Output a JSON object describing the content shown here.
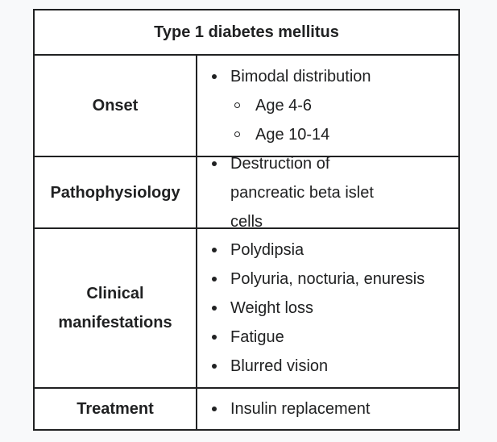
{
  "table": {
    "title": "Type 1 diabetes mellitus",
    "rows": [
      {
        "label": "Onset",
        "items": [
          {
            "text": "Bimodal distribution",
            "subitems": [
              "Age 4-6",
              "Age 10-14"
            ]
          }
        ]
      },
      {
        "label": "Pathophysiology",
        "items": [
          {
            "text": "Destruction of pancreatic beta islet cells"
          }
        ]
      },
      {
        "label": "Clinical manifestations",
        "items": [
          {
            "text": "Polydipsia"
          },
          {
            "text": "Polyuria, nocturia, enuresis"
          },
          {
            "text": "Weight loss"
          },
          {
            "text": "Fatigue"
          },
          {
            "text": "Blurred vision"
          }
        ]
      },
      {
        "label": "Treatment",
        "items": [
          {
            "text": "Insulin replacement"
          }
        ]
      }
    ]
  }
}
